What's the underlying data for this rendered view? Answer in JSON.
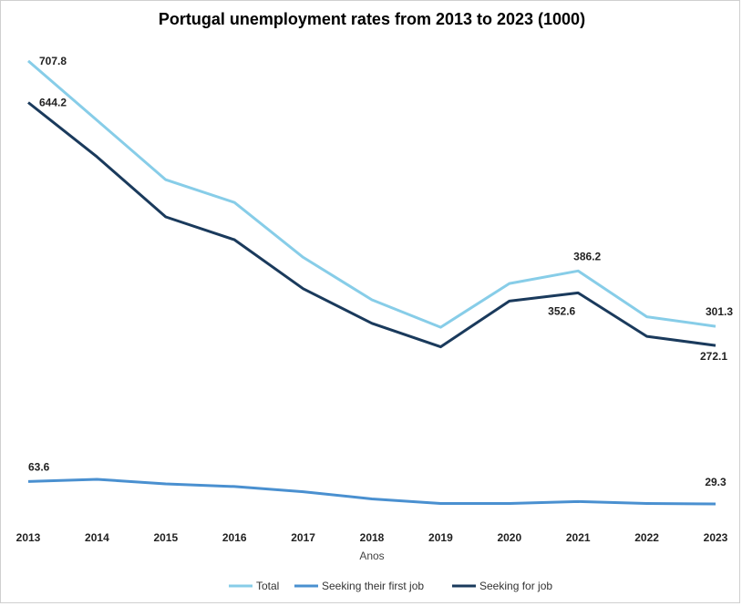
{
  "chart_data": {
    "type": "line",
    "title": "Portugal unemployment rates from 2013 to 2023 (1000)",
    "xlabel": "Anos",
    "ylabel": "",
    "categories": [
      "2013",
      "2014",
      "2015",
      "2016",
      "2017",
      "2018",
      "2019",
      "2020",
      "2021",
      "2022",
      "2023"
    ],
    "ylim": [
      0,
      730
    ],
    "grid": false,
    "legend_position": "bottom",
    "series": [
      {
        "name": "Total",
        "color": "#87CDE8",
        "values": [
          707.8,
          617,
          526,
          491,
          407,
          342,
          300,
          367,
          386.2,
          316,
          301.3
        ]
      },
      {
        "name": "Seeking their first job",
        "color": "#4A90D0",
        "values": [
          63.6,
          67,
          60,
          56,
          48,
          37,
          30,
          30,
          33,
          30,
          29.3
        ]
      },
      {
        "name": "Seeking for job",
        "color": "#1A3A5C",
        "values": [
          644.2,
          561,
          469,
          434,
          359,
          306,
          270,
          340,
          352.6,
          286,
          272.1
        ]
      }
    ],
    "annotations": [
      {
        "series": 0,
        "index": 0,
        "text": "707.8"
      },
      {
        "series": 0,
        "index": 8,
        "text": "386.2"
      },
      {
        "series": 0,
        "index": 10,
        "text": "301.3"
      },
      {
        "series": 2,
        "index": 0,
        "text": "644.2"
      },
      {
        "series": 2,
        "index": 8,
        "text": "352.6"
      },
      {
        "series": 2,
        "index": 10,
        "text": "272.1"
      },
      {
        "series": 1,
        "index": 0,
        "text": "63.6"
      },
      {
        "series": 1,
        "index": 10,
        "text": "29.3"
      }
    ]
  }
}
